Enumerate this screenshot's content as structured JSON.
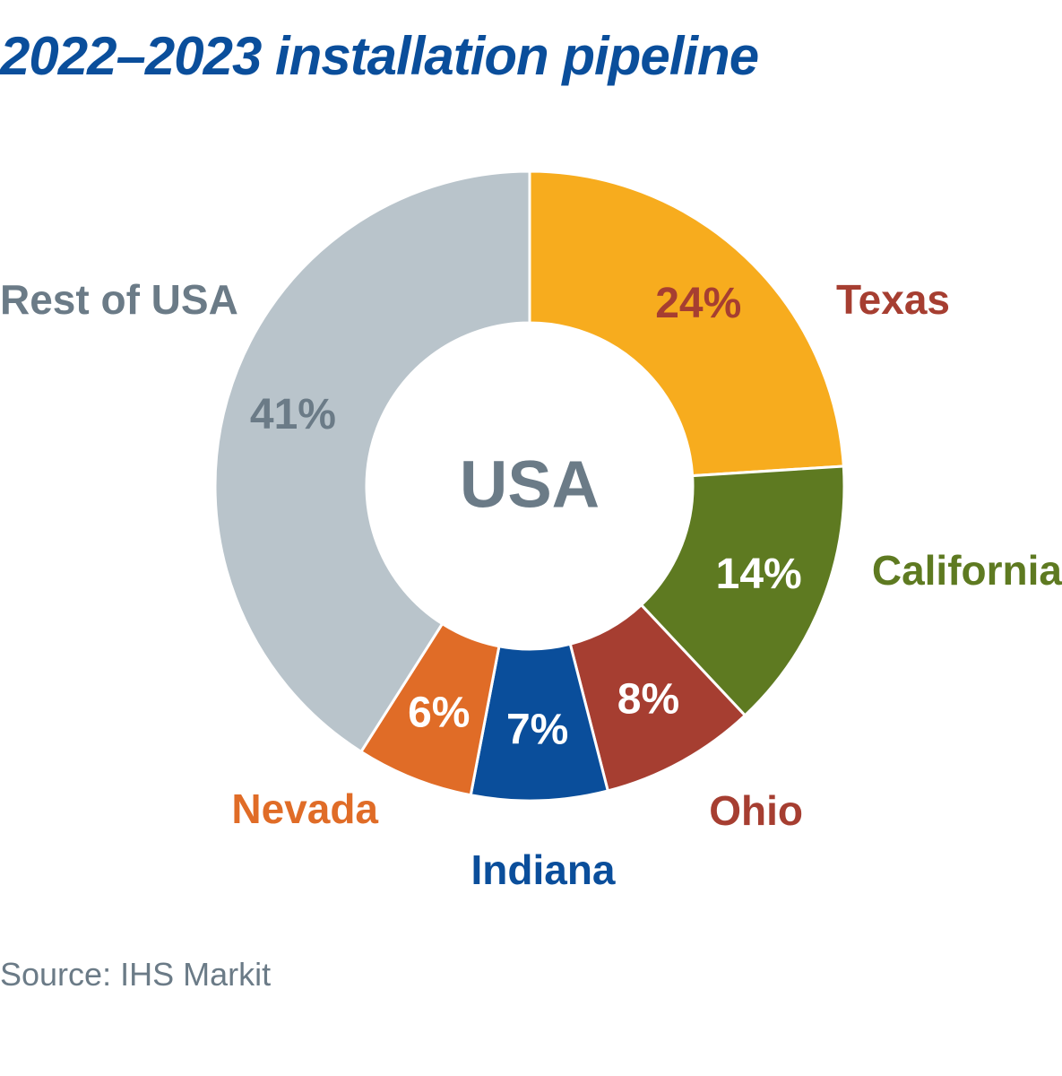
{
  "chart_data": {
    "type": "pie",
    "variant": "donut",
    "title": "2022–2023 installation pipeline",
    "center_label": "USA",
    "source": "Source: IHS Markit",
    "unit": "%",
    "slices": [
      {
        "label": "Texas",
        "value": 24,
        "display": "24%",
        "color": "#f7ac1e",
        "label_color": "#a63e31",
        "value_label_color": "#a63e31"
      },
      {
        "label": "California",
        "value": 14,
        "display": "14%",
        "color": "#5e7a21",
        "label_color": "#5e7a21",
        "value_label_color": "#ffffff"
      },
      {
        "label": "Ohio",
        "value": 8,
        "display": "8%",
        "color": "#a63e31",
        "label_color": "#a63e31",
        "value_label_color": "#ffffff"
      },
      {
        "label": "Indiana",
        "value": 7,
        "display": "7%",
        "color": "#0a4e9b",
        "label_color": "#0a4e9b",
        "value_label_color": "#ffffff"
      },
      {
        "label": "Nevada",
        "value": 6,
        "display": "6%",
        "color": "#e06c27",
        "label_color": "#e06c27",
        "value_label_color": "#ffffff"
      },
      {
        "label": "Rest of USA",
        "value": 41,
        "display": "41%",
        "color": "#b9c4cb",
        "label_color": "#6b7b87",
        "value_label_color": "#6b7b87"
      }
    ]
  },
  "colors": {
    "title": "#0a4e9b",
    "center_label": "#6b7b87",
    "source": "#6b7b87"
  }
}
